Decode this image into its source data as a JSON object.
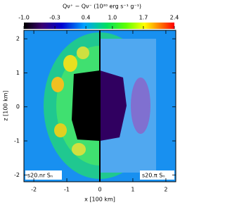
{
  "chart_data": {
    "type": "heatmap",
    "title": "Qν⁺ − Qν⁻   (10²⁰ erg s⁻¹ g⁻¹)",
    "colorbar": {
      "lim": [
        -1.0,
        2.4
      ],
      "ticks": [
        {
          "value": -1.0,
          "label": "-1.0"
        },
        -0.3,
        0.4,
        {
          "value": 1.0,
          "label": "1.0"
        },
        1.7,
        2.4
      ]
    },
    "x_label": "x [100 km]",
    "y_label": "z [100 km]",
    "xlim": [
      -2.3,
      2.3
    ],
    "ylim": [
      -2.2,
      2.25
    ],
    "xticks": [
      -2,
      -1,
      0,
      1,
      2
    ],
    "yticks": [
      -2,
      -1,
      0,
      1,
      2
    ],
    "annotations": [
      "s20.nr Sₙ",
      "s20.π Sₙ"
    ]
  }
}
